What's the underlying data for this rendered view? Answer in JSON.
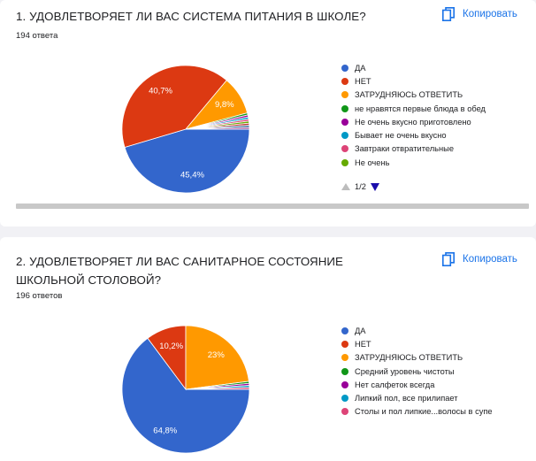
{
  "copy_label": "Копировать",
  "questions": [
    {
      "title": "1. УДОВЛЕТВОРЯЕТ ЛИ ВАС СИСТЕМА ПИТАНИЯ В ШКОЛЕ?",
      "count": "194 ответа",
      "pager": "1/2"
    },
    {
      "title": "2. УДОВЛЕТВОРЯЕТ ЛИ ВАС САНИТАРНОЕ СОСТОЯНИЕ ШКОЛЬНОЙ СТОЛОВОЙ?",
      "count": "196 ответов"
    }
  ],
  "chart_data": [
    {
      "type": "pie",
      "legend_position": "right",
      "slices": [
        {
          "label": "ДА",
          "value": 45.4,
          "display": "45,4%",
          "color": "#3366cc"
        },
        {
          "label": "НЕТ",
          "value": 40.7,
          "display": "40,7%",
          "color": "#dc3912"
        },
        {
          "label": "ЗАТРУДНЯЮСЬ ОТВЕТИТЬ",
          "value": 9.8,
          "display": "9,8%",
          "color": "#ff9900"
        },
        {
          "label": "не нравятся первые блюда в обед",
          "value": 0.52,
          "display": "",
          "color": "#109618"
        },
        {
          "label": "Не очень вкусно приготовлено",
          "value": 0.52,
          "display": "",
          "color": "#990099"
        },
        {
          "label": "Бывает не очень вкусно",
          "value": 0.52,
          "display": "",
          "color": "#0099c6"
        },
        {
          "label": "Завтраки отвратительные",
          "value": 0.52,
          "display": "",
          "color": "#dd4477"
        },
        {
          "label": "Не очень",
          "value": 0.52,
          "display": "",
          "color": "#66aa00"
        },
        {
          "label": "",
          "value": 0.52,
          "display": "",
          "color": "#b82e2e"
        },
        {
          "label": "",
          "value": 0.52,
          "display": "",
          "color": "#316395"
        },
        {
          "label": "",
          "value": 0.46,
          "display": "",
          "color": "#994499"
        }
      ]
    },
    {
      "type": "pie",
      "legend_position": "right",
      "slices": [
        {
          "label": "ДА",
          "value": 64.8,
          "display": "64,8%",
          "color": "#3366cc"
        },
        {
          "label": "НЕТ",
          "value": 10.2,
          "display": "10,2%",
          "color": "#dc3912"
        },
        {
          "label": "ЗАТРУДНЯЮСЬ ОТВЕТИТЬ",
          "value": 23,
          "display": "23%",
          "color": "#ff9900"
        },
        {
          "label": "Средний уровень чистоты",
          "value": 0.51,
          "display": "",
          "color": "#109618"
        },
        {
          "label": "Нет салфеток всегда",
          "value": 0.51,
          "display": "",
          "color": "#990099"
        },
        {
          "label": "Липкий пол, все прилипает",
          "value": 0.51,
          "display": "",
          "color": "#0099c6"
        },
        {
          "label": "Столы и пол липкие...волосы в супе",
          "value": 0.47,
          "display": "",
          "color": "#dd4477"
        }
      ]
    }
  ]
}
